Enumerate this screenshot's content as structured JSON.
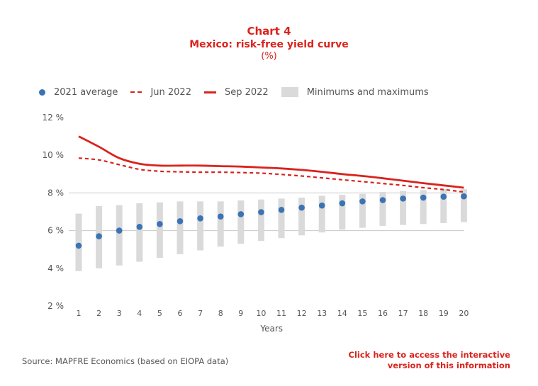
{
  "header": {
    "title": "Chart 4",
    "subtitle": "Mexico: risk-free yield curve",
    "unit": "(%)"
  },
  "footer": {
    "source": "Source: MAPFRE Economics (based on EIOPA data)",
    "cta_line1": "Click here to access the interactive",
    "cta_line2": "version of this information"
  },
  "colors": {
    "accent": "#d9231d",
    "dots": "#3b73b4",
    "bars": "#dadada",
    "grid": "#c8c8c8",
    "text": "#555555"
  },
  "chart_data": {
    "type": "line",
    "xlabel": "Years",
    "ylabel": "",
    "x": [
      1,
      2,
      3,
      4,
      5,
      6,
      7,
      8,
      9,
      10,
      11,
      12,
      13,
      14,
      15,
      16,
      17,
      18,
      19,
      20
    ],
    "ylim": [
      2,
      12
    ],
    "yticks": [
      2,
      4,
      6,
      8,
      10,
      12
    ],
    "ytick_labels": [
      "2 %",
      "4 %",
      "6 %",
      "8 %",
      "10 %",
      "12 %"
    ],
    "grid": "horizontal at 6 % and 8 %",
    "legend": "top-left",
    "series": [
      {
        "name": "2021 average",
        "style": "dots",
        "values": [
          5.2,
          5.7,
          6.0,
          6.2,
          6.35,
          6.5,
          6.65,
          6.75,
          6.87,
          6.98,
          7.1,
          7.22,
          7.33,
          7.45,
          7.55,
          7.62,
          7.7,
          7.75,
          7.8,
          7.82
        ]
      },
      {
        "name": "Jun 2022",
        "style": "dashed",
        "values": [
          9.85,
          9.75,
          9.5,
          9.25,
          9.15,
          9.12,
          9.1,
          9.1,
          9.08,
          9.05,
          8.98,
          8.9,
          8.8,
          8.7,
          8.6,
          8.5,
          8.4,
          8.28,
          8.18,
          8.05
        ]
      },
      {
        "name": "Sep 2022",
        "style": "solid",
        "values": [
          11.0,
          10.45,
          9.85,
          9.55,
          9.45,
          9.45,
          9.45,
          9.42,
          9.4,
          9.35,
          9.3,
          9.22,
          9.12,
          9.0,
          8.9,
          8.78,
          8.65,
          8.52,
          8.4,
          8.28
        ]
      },
      {
        "name": "Minimums and maximums",
        "style": "range",
        "low": [
          3.85,
          4.0,
          4.15,
          4.35,
          4.55,
          4.75,
          4.95,
          5.15,
          5.3,
          5.45,
          5.6,
          5.75,
          5.9,
          6.05,
          6.15,
          6.25,
          6.3,
          6.35,
          6.4,
          6.45
        ],
        "high": [
          6.9,
          7.3,
          7.35,
          7.45,
          7.5,
          7.55,
          7.55,
          7.55,
          7.6,
          7.65,
          7.7,
          7.75,
          7.85,
          7.9,
          7.95,
          8.05,
          8.1,
          8.15,
          8.2,
          8.2
        ]
      }
    ]
  }
}
